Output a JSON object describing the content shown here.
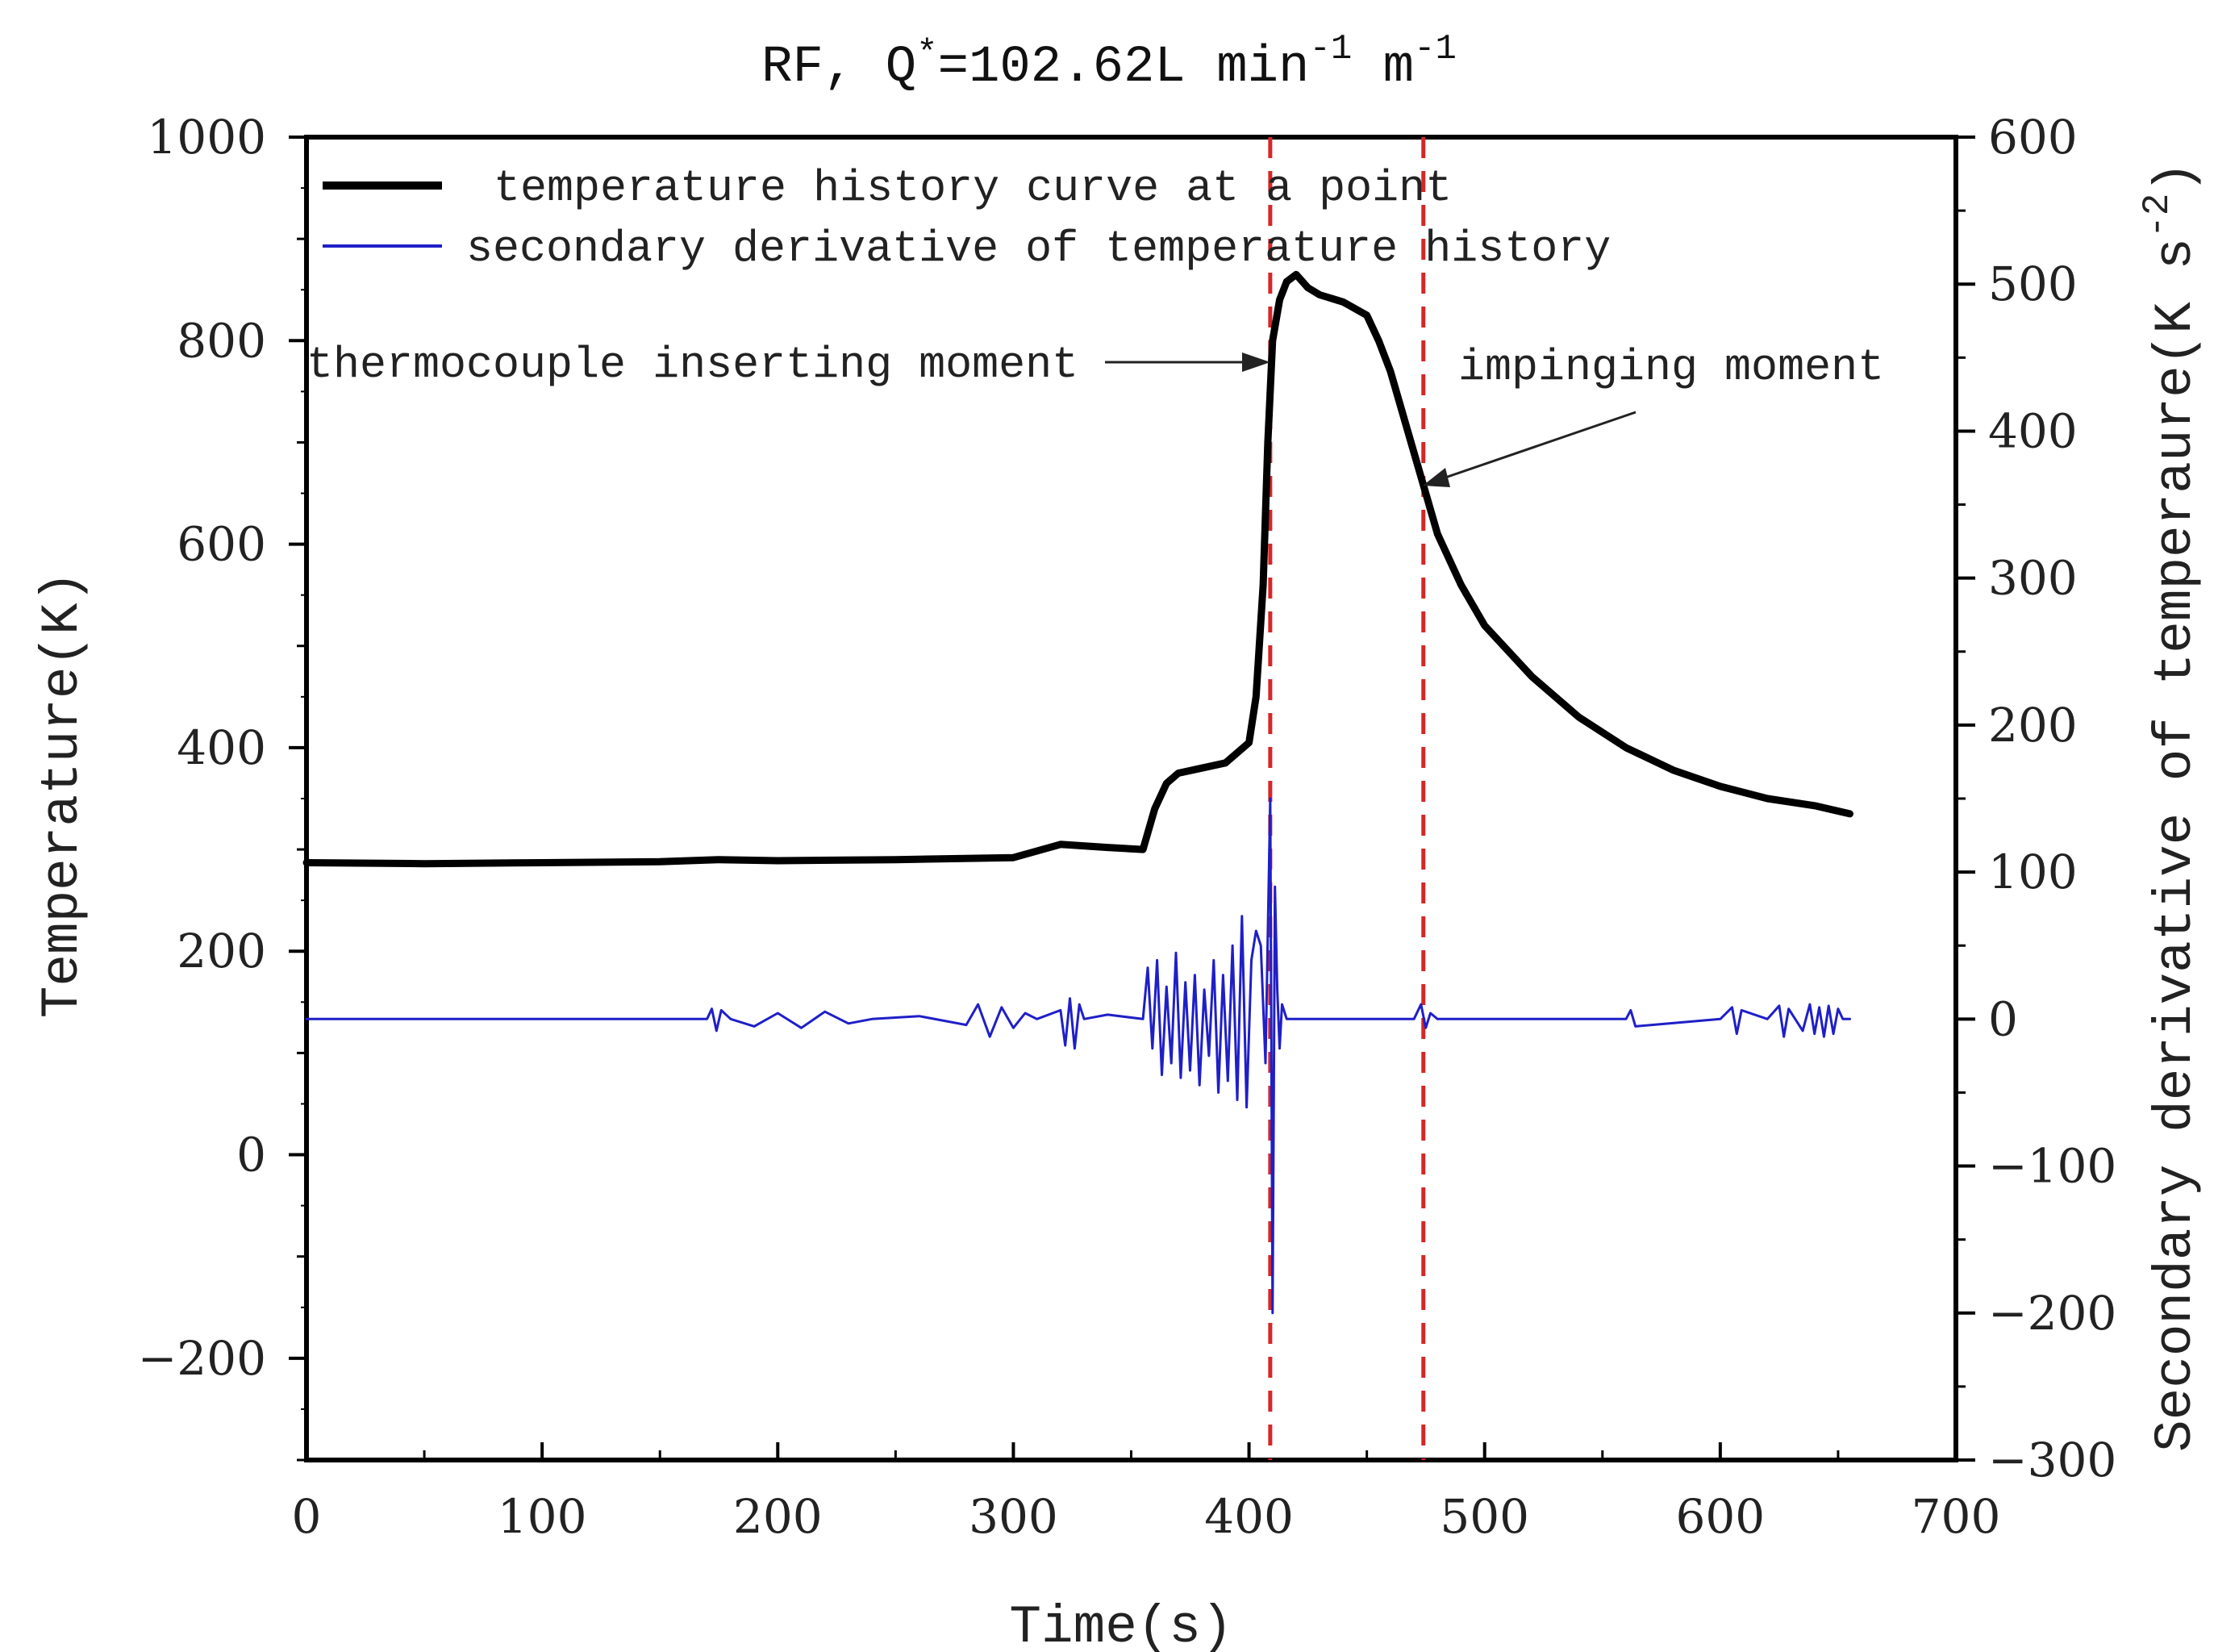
{
  "chart_data": {
    "type": "line",
    "title": {
      "prefix": "RF,  Q",
      "star": "*",
      "value": "=102.62L min",
      "exp1": "-1",
      "unit2": " m",
      "exp2": "-1"
    },
    "xlabel": "Time(s)",
    "ylabel": "Temperature(K)",
    "y2label": {
      "text": "Secondary derivative of temperaure(K s",
      "exp": "-2",
      "close": ")"
    },
    "xlim": [
      0,
      700
    ],
    "ylim": [
      -300,
      1000
    ],
    "y2lim": [
      -300,
      600
    ],
    "x_ticks": [
      "0",
      "100",
      "200",
      "300",
      "400",
      "500",
      "600",
      "700"
    ],
    "y_ticks": [
      "-200",
      "0",
      "200",
      "400",
      "600",
      "800",
      "1000"
    ],
    "y2_ticks": [
      "-300",
      "-200",
      "-100",
      "0",
      "100",
      "200",
      "300",
      "400",
      "500",
      "600"
    ],
    "series": [
      {
        "name": "temperature history curve at a point",
        "axis": "left",
        "color": "#000000",
        "x": [
          0,
          50,
          100,
          150,
          175,
          200,
          250,
          300,
          320,
          340,
          355,
          360,
          365,
          370,
          380,
          390,
          400,
          403,
          406,
          408,
          410,
          413,
          416,
          420,
          425,
          430,
          440,
          450,
          455,
          460,
          465,
          470,
          475,
          480,
          490,
          500,
          520,
          540,
          560,
          580,
          600,
          620,
          640,
          655
        ],
        "values": [
          287,
          286,
          287,
          288,
          290,
          289,
          290,
          292,
          305,
          302,
          300,
          340,
          365,
          375,
          380,
          385,
          405,
          450,
          560,
          700,
          800,
          840,
          858,
          865,
          852,
          845,
          838,
          825,
          800,
          770,
          730,
          690,
          650,
          610,
          560,
          520,
          470,
          430,
          400,
          378,
          362,
          350,
          343,
          335
        ]
      },
      {
        "name": "secondary derivative of temperature history",
        "axis": "right",
        "color": "#1f1fc8",
        "x": [
          0,
          130,
          170,
          172,
          174,
          176,
          180,
          190,
          200,
          210,
          220,
          230,
          240,
          260,
          280,
          285,
          290,
          295,
          300,
          305,
          310,
          320,
          322,
          324,
          326,
          328,
          330,
          340,
          355,
          357,
          359,
          361,
          363,
          365,
          367,
          369,
          371,
          373,
          375,
          377,
          379,
          381,
          383,
          385,
          387,
          389,
          391,
          393,
          395,
          397,
          399,
          401,
          403,
          405,
          407,
          409,
          410,
          411,
          412,
          413,
          414,
          416,
          420,
          430,
          470,
          473,
          475,
          477,
          480,
          500,
          540,
          560,
          562,
          564,
          600,
          605,
          607,
          609,
          620,
          625,
          627,
          629,
          635,
          638,
          640,
          642,
          644,
          646,
          648,
          650,
          652,
          655
        ],
        "values": [
          0,
          0,
          0,
          7,
          -8,
          6,
          0,
          -5,
          4,
          -6,
          5,
          -3,
          0,
          2,
          -4,
          10,
          -12,
          8,
          -6,
          4,
          0,
          6,
          -18,
          14,
          -20,
          10,
          0,
          3,
          0,
          35,
          -20,
          40,
          -38,
          22,
          -30,
          45,
          -40,
          25,
          -35,
          30,
          -45,
          20,
          -25,
          40,
          -50,
          30,
          -42,
          50,
          -55,
          70,
          -60,
          40,
          60,
          50,
          -30,
          150,
          -200,
          90,
          20,
          -20,
          10,
          0,
          0,
          0,
          0,
          10,
          -6,
          4,
          0,
          0,
          0,
          0,
          6,
          -5,
          0,
          8,
          -10,
          6,
          0,
          9,
          -12,
          7,
          -8,
          10,
          -10,
          8,
          -12,
          9,
          -10,
          7,
          0,
          0
        ]
      }
    ],
    "vlines": [
      409,
      474
    ],
    "vline_color": "#d62728",
    "annotations": [
      {
        "text": "thermocouple inserting moment",
        "target_x": 409,
        "target_y": 780
      },
      {
        "text": "impinging moment",
        "target_x": 474,
        "target_y": 660
      }
    ],
    "legend": "top-left"
  }
}
